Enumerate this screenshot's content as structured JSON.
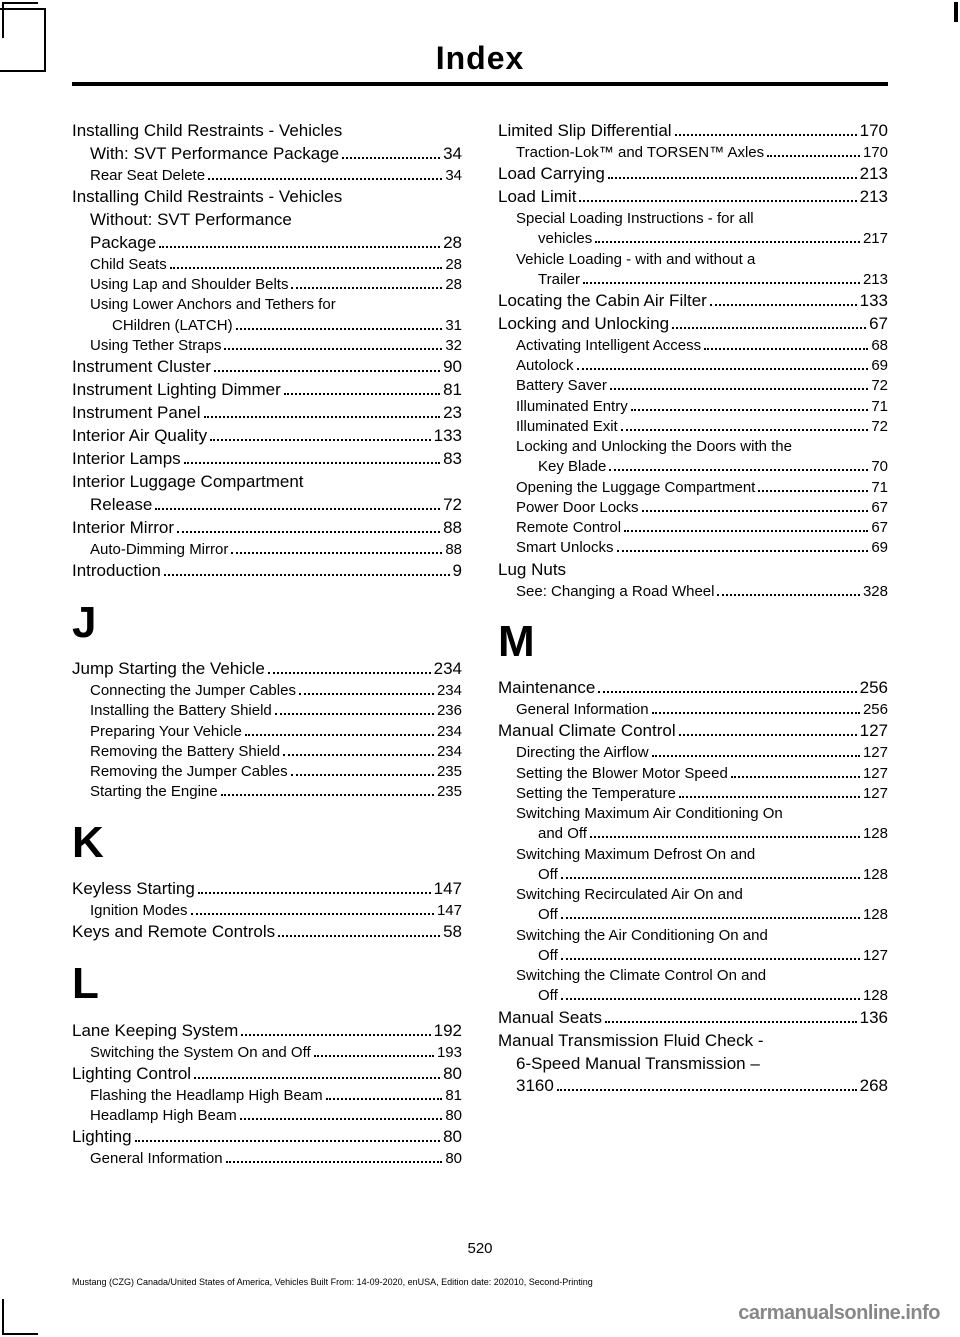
{
  "header": {
    "title": "Index"
  },
  "page_number": "520",
  "footer_line": "Mustang (CZG) Canada/United States of America, Vehicles Built From: 14-09-2020, enUSA, Edition date: 202010, Second-Printing",
  "logo_text": "carmanualsonline.info",
  "left": {
    "entries": [
      {
        "type": "main",
        "text": "Installing Child Restraints - Vehicles",
        "cont": true
      },
      {
        "type": "main-cont",
        "text": "With: SVT Performance Package",
        "page": "34"
      },
      {
        "type": "sub",
        "text": "Rear Seat Delete",
        "page": "34"
      },
      {
        "type": "main",
        "text": "Installing Child Restraints - Vehicles",
        "cont": true
      },
      {
        "type": "main-cont",
        "text": "Without: SVT Performance",
        "cont": true
      },
      {
        "type": "main-cont",
        "text": "Package",
        "page": "28"
      },
      {
        "type": "sub",
        "text": "Child Seats",
        "page": "28"
      },
      {
        "type": "sub",
        "text": "Using Lap and Shoulder Belts",
        "page": "28"
      },
      {
        "type": "sub",
        "text": "Using Lower Anchors and Tethers for",
        "cont": true
      },
      {
        "type": "subsub",
        "text": "CHildren (LATCH)",
        "page": "31"
      },
      {
        "type": "sub",
        "text": "Using Tether Straps",
        "page": "32"
      },
      {
        "type": "main",
        "text": "Instrument Cluster",
        "page": "90"
      },
      {
        "type": "main",
        "text": "Instrument Lighting Dimmer",
        "page": "81"
      },
      {
        "type": "main",
        "text": "Instrument Panel",
        "page": "23"
      },
      {
        "type": "main",
        "text": "Interior Air Quality",
        "page": "133"
      },
      {
        "type": "main",
        "text": "Interior Lamps",
        "page": "83"
      },
      {
        "type": "main",
        "text": "Interior Luggage Compartment",
        "cont": true
      },
      {
        "type": "main-cont",
        "text": "Release",
        "page": "72"
      },
      {
        "type": "main",
        "text": "Interior Mirror",
        "page": "88"
      },
      {
        "type": "sub",
        "text": "Auto-Dimming Mirror",
        "page": "88"
      },
      {
        "type": "main",
        "text": "Introduction",
        "page": "9"
      }
    ],
    "J": {
      "letter": "J",
      "entries": [
        {
          "type": "main",
          "text": "Jump Starting the Vehicle",
          "page": "234"
        },
        {
          "type": "sub",
          "text": "Connecting the Jumper Cables",
          "page": "234"
        },
        {
          "type": "sub",
          "text": "Installing the Battery Shield",
          "page": "236"
        },
        {
          "type": "sub",
          "text": "Preparing Your Vehicle",
          "page": "234"
        },
        {
          "type": "sub",
          "text": "Removing the Battery Shield",
          "page": "234"
        },
        {
          "type": "sub",
          "text": "Removing the Jumper Cables",
          "page": "235"
        },
        {
          "type": "sub",
          "text": "Starting the Engine",
          "page": "235"
        }
      ]
    },
    "K": {
      "letter": "K",
      "entries": [
        {
          "type": "main",
          "text": "Keyless Starting",
          "page": "147"
        },
        {
          "type": "sub",
          "text": "Ignition Modes",
          "page": "147"
        },
        {
          "type": "main",
          "text": "Keys and Remote Controls",
          "page": "58"
        }
      ]
    },
    "L": {
      "letter": "L",
      "entries": [
        {
          "type": "main",
          "text": "Lane Keeping System",
          "page": "192"
        },
        {
          "type": "sub",
          "text": "Switching the System On and Off",
          "page": "193"
        },
        {
          "type": "main",
          "text": "Lighting Control",
          "page": "80"
        },
        {
          "type": "sub",
          "text": "Flashing the Headlamp High Beam",
          "page": "81"
        },
        {
          "type": "sub",
          "text": "Headlamp High Beam",
          "page": "80"
        },
        {
          "type": "main",
          "text": "Lighting",
          "page": "80"
        },
        {
          "type": "sub",
          "text": "General Information",
          "page": "80"
        }
      ]
    }
  },
  "right": {
    "entries": [
      {
        "type": "main",
        "text": "Limited Slip Differential",
        "page": "170"
      },
      {
        "type": "sub",
        "text": "Traction-Lok™ and TORSEN™ Axles",
        "page": "170"
      },
      {
        "type": "main",
        "text": "Load Carrying",
        "page": "213"
      },
      {
        "type": "main",
        "text": "Load Limit",
        "page": "213"
      },
      {
        "type": "sub",
        "text": "Special Loading Instructions - for all",
        "cont": true
      },
      {
        "type": "subsub",
        "text": "vehicles",
        "page": "217"
      },
      {
        "type": "sub",
        "text": "Vehicle Loading - with and without a",
        "cont": true
      },
      {
        "type": "subsub",
        "text": "Trailer",
        "page": "213"
      },
      {
        "type": "main",
        "text": "Locating the Cabin Air Filter",
        "page": "133"
      },
      {
        "type": "main",
        "text": "Locking and Unlocking",
        "page": "67"
      },
      {
        "type": "sub",
        "text": "Activating Intelligent Access",
        "page": "68"
      },
      {
        "type": "sub",
        "text": "Autolock",
        "page": "69"
      },
      {
        "type": "sub",
        "text": "Battery Saver",
        "page": "72"
      },
      {
        "type": "sub",
        "text": "Illuminated Entry",
        "page": "71"
      },
      {
        "type": "sub",
        "text": "Illuminated Exit",
        "page": "72"
      },
      {
        "type": "sub",
        "text": "Locking and Unlocking the Doors with the",
        "cont": true
      },
      {
        "type": "subsub",
        "text": "Key Blade",
        "page": "70"
      },
      {
        "type": "sub",
        "text": "Opening the Luggage Compartment",
        "page": "71"
      },
      {
        "type": "sub",
        "text": "Power Door Locks",
        "page": "67"
      },
      {
        "type": "sub",
        "text": "Remote Control",
        "page": "67"
      },
      {
        "type": "sub",
        "text": "Smart Unlocks",
        "page": "69"
      },
      {
        "type": "main",
        "text": "Lug Nuts",
        "cont": true
      },
      {
        "type": "sub",
        "text": "See: Changing a Road Wheel",
        "page": "328"
      }
    ],
    "M": {
      "letter": "M",
      "entries": [
        {
          "type": "main",
          "text": "Maintenance",
          "page": "256"
        },
        {
          "type": "sub",
          "text": "General Information",
          "page": "256"
        },
        {
          "type": "main",
          "text": "Manual Climate Control",
          "page": "127"
        },
        {
          "type": "sub",
          "text": "Directing the Airflow",
          "page": "127"
        },
        {
          "type": "sub",
          "text": "Setting the Blower Motor Speed",
          "page": "127"
        },
        {
          "type": "sub",
          "text": "Setting the Temperature",
          "page": "127"
        },
        {
          "type": "sub",
          "text": "Switching Maximum Air Conditioning On",
          "cont": true
        },
        {
          "type": "subsub",
          "text": "and Off",
          "page": "128"
        },
        {
          "type": "sub",
          "text": "Switching Maximum Defrost On and",
          "cont": true
        },
        {
          "type": "subsub",
          "text": "Off",
          "page": "128"
        },
        {
          "type": "sub",
          "text": "Switching Recirculated Air On and",
          "cont": true
        },
        {
          "type": "subsub",
          "text": "Off",
          "page": "128"
        },
        {
          "type": "sub",
          "text": "Switching the Air Conditioning On and",
          "cont": true
        },
        {
          "type": "subsub",
          "text": "Off",
          "page": "127"
        },
        {
          "type": "sub",
          "text": "Switching the Climate Control On and",
          "cont": true
        },
        {
          "type": "subsub",
          "text": "Off",
          "page": "128"
        },
        {
          "type": "main",
          "text": "Manual Seats",
          "page": "136"
        },
        {
          "type": "main",
          "text": "Manual Transmission Fluid Check -",
          "cont": true
        },
        {
          "type": "main-cont",
          "text": "6-Speed Manual Transmission –",
          "cont": true
        },
        {
          "type": "main-cont",
          "text": "3160",
          "page": "268"
        }
      ]
    }
  }
}
